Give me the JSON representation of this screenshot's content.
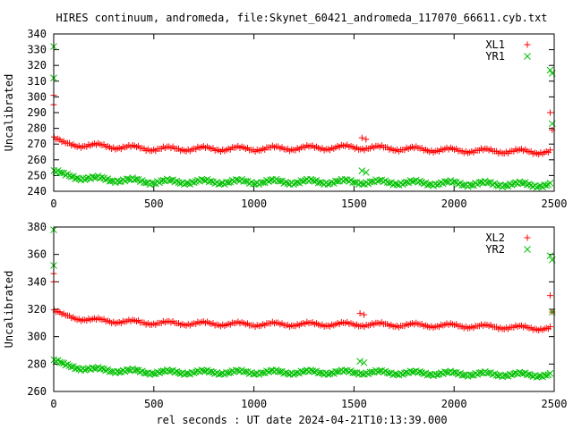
{
  "title": "HIRES continuum, andromeda, file:Skynet_60421_andromeda_117070_66611.cyb.txt",
  "xlabel": "rel seconds : UT date 2024-04-21T10:13:39.000",
  "colors": {
    "xl": "#ff0000",
    "yr": "#00c000",
    "axis": "#000000"
  },
  "chart_data": [
    {
      "type": "scatter",
      "ylabel": "Uncalibrated",
      "xlim": [
        0,
        2500
      ],
      "ylim": [
        240,
        340
      ],
      "xticks": [
        0,
        500,
        1000,
        1500,
        2000,
        2500
      ],
      "yticks": [
        240,
        250,
        260,
        270,
        280,
        290,
        300,
        310,
        320,
        330,
        340
      ],
      "legend_position": "top-right",
      "series": [
        {
          "name": "XL1",
          "marker": "plus",
          "color": "#ff0000",
          "trend": {
            "x": [
              0,
              50,
              200,
              500,
              1000,
              1500,
              2000,
              2480
            ],
            "y": [
              274,
              270,
              269,
              267,
              267,
              268,
              266,
              265
            ]
          },
          "outliers": [
            [
              0,
              301
            ],
            [
              0,
              295
            ],
            [
              1540,
              274
            ],
            [
              1560,
              273
            ],
            [
              2480,
              290
            ],
            [
              2490,
              279
            ]
          ]
        },
        {
          "name": "YR1",
          "marker": "x",
          "color": "#00c000",
          "trend": {
            "x": [
              0,
              50,
              200,
              500,
              1000,
              1500,
              2000,
              2480
            ],
            "y": [
              253,
              250,
              248,
              246,
              246,
              246,
              245,
              244
            ]
          },
          "outliers": [
            [
              0,
              332
            ],
            [
              0,
              312
            ],
            [
              1540,
              253
            ],
            [
              1560,
              252
            ],
            [
              2480,
              317
            ],
            [
              2490,
              315
            ],
            [
              2490,
              283
            ]
          ]
        }
      ]
    },
    {
      "type": "scatter",
      "ylabel": "Uncalibrated",
      "xlim": [
        0,
        2500
      ],
      "ylim": [
        260,
        380
      ],
      "xticks": [
        0,
        500,
        1000,
        1500,
        2000,
        2500
      ],
      "yticks": [
        260,
        280,
        300,
        320,
        340,
        360,
        380
      ],
      "legend_position": "top-right",
      "series": [
        {
          "name": "XL2",
          "marker": "plus",
          "color": "#ff0000",
          "trend": {
            "x": [
              0,
              50,
              200,
              500,
              1000,
              1500,
              2000,
              2480
            ],
            "y": [
              319,
              315,
              312,
              310,
              309,
              309,
              308,
              306
            ]
          },
          "outliers": [
            [
              0,
              346
            ],
            [
              0,
              340
            ],
            [
              1530,
              317
            ],
            [
              1550,
              316
            ],
            [
              2480,
              330
            ],
            [
              2490,
              318
            ]
          ]
        },
        {
          "name": "YR2",
          "marker": "x",
          "color": "#00c000",
          "trend": {
            "x": [
              0,
              50,
              200,
              500,
              1000,
              1500,
              2000,
              2480
            ],
            "y": [
              283,
              279,
              276,
              274,
              274,
              274,
              273,
              272
            ]
          },
          "outliers": [
            [
              0,
              378
            ],
            [
              0,
              352
            ],
            [
              1530,
              282
            ],
            [
              1550,
              281
            ],
            [
              2480,
              359
            ],
            [
              2490,
              356
            ],
            [
              2490,
              318
            ]
          ]
        }
      ]
    }
  ]
}
